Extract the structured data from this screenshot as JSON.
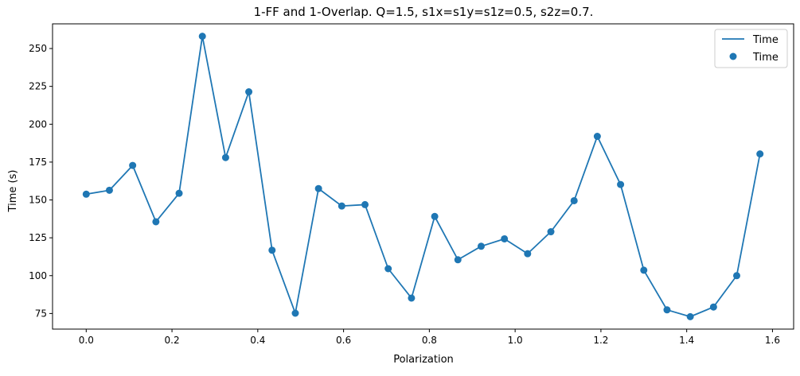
{
  "chart_data": {
    "type": "line",
    "title": "1-FF and 1-Overlap. Q=1.5, s1x=s1y=s1z=0.5, s2z=0.7.",
    "xlabel": "Polarization",
    "ylabel": "Time (s)",
    "xlim": [
      -0.0785,
      1.6493
    ],
    "ylim": [
      64.7,
      266.3
    ],
    "xticks": [
      0.0,
      0.2,
      0.4,
      0.6,
      0.8,
      1.0,
      1.2,
      1.4,
      1.6
    ],
    "xtick_labels": [
      "0.0",
      "0.2",
      "0.4",
      "0.6",
      "0.8",
      "1.0",
      "1.2",
      "1.4",
      "1.6"
    ],
    "yticks": [
      75,
      100,
      125,
      150,
      175,
      200,
      225,
      250
    ],
    "ytick_labels": [
      "75",
      "100",
      "125",
      "150",
      "175",
      "200",
      "225",
      "250"
    ],
    "grid": false,
    "legend_position": "top-right",
    "color": "#1f77b4",
    "series": [
      {
        "name": "Time",
        "kind": "line"
      },
      {
        "name": "Time",
        "kind": "scatter"
      }
    ],
    "x": [
      0.0,
      0.0541,
      0.1083,
      0.1625,
      0.2166,
      0.2708,
      0.325,
      0.3791,
      0.4333,
      0.4875,
      0.5416,
      0.5958,
      0.65,
      0.7041,
      0.7583,
      0.8125,
      0.8666,
      0.9208,
      0.975,
      1.0291,
      1.0833,
      1.1375,
      1.1916,
      1.2458,
      1.3,
      1.3541,
      1.4083,
      1.4625,
      1.5166,
      1.5708
    ],
    "y": [
      153.8,
      156.4,
      172.8,
      135.6,
      154.4,
      258.1,
      178.0,
      221.4,
      116.8,
      75.2,
      157.5,
      146.0,
      146.9,
      104.6,
      85.2,
      139.1,
      110.5,
      119.4,
      124.3,
      114.5,
      129.0,
      149.5,
      192.0,
      160.2,
      103.6,
      77.4,
      72.9,
      79.3,
      100.0,
      180.4
    ]
  }
}
